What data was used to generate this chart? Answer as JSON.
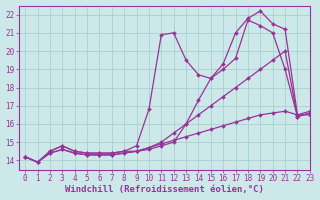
{
  "xlabel": "Windchill (Refroidissement éolien,°C)",
  "xlim": [
    -0.5,
    23
  ],
  "ylim": [
    13.5,
    22.5
  ],
  "xticks": [
    0,
    1,
    2,
    3,
    4,
    5,
    6,
    7,
    8,
    9,
    10,
    11,
    12,
    13,
    14,
    15,
    16,
    17,
    18,
    19,
    20,
    21,
    22,
    23
  ],
  "yticks": [
    14,
    15,
    16,
    17,
    18,
    19,
    20,
    21,
    22
  ],
  "background_color": "#cce8e8",
  "grid_color": "#a8d0d0",
  "line_color": "#993399",
  "series": [
    {
      "x": [
        0,
        1,
        2,
        3,
        4,
        5,
        6,
        7,
        8,
        9,
        10,
        11,
        12,
        13,
        14,
        15,
        16,
        17,
        18,
        19,
        20,
        21,
        22,
        23
      ],
      "y": [
        14.2,
        13.9,
        14.5,
        14.8,
        14.5,
        14.4,
        14.4,
        14.4,
        14.5,
        14.5,
        14.6,
        14.8,
        15.0,
        16.0,
        17.3,
        18.5,
        19.3,
        21.0,
        21.8,
        22.2,
        21.5,
        21.2,
        16.5,
        16.5
      ]
    },
    {
      "x": [
        0,
        1,
        2,
        3,
        4,
        5,
        6,
        7,
        8,
        9,
        10,
        11,
        12,
        13,
        14,
        15,
        16,
        17,
        18,
        19,
        20,
        21,
        22,
        23
      ],
      "y": [
        14.2,
        13.9,
        14.5,
        14.8,
        14.5,
        14.4,
        14.4,
        14.4,
        14.5,
        14.8,
        16.8,
        20.9,
        21.0,
        19.5,
        18.7,
        18.5,
        19.0,
        19.6,
        21.7,
        21.4,
        21.0,
        19.0,
        16.4,
        16.6
      ]
    },
    {
      "x": [
        0,
        1,
        2,
        3,
        4,
        5,
        6,
        7,
        8,
        9,
        10,
        11,
        12,
        13,
        14,
        15,
        16,
        17,
        18,
        19,
        20,
        21,
        22,
        23
      ],
      "y": [
        14.2,
        13.9,
        14.4,
        14.6,
        14.4,
        14.3,
        14.3,
        14.3,
        14.4,
        14.5,
        14.7,
        15.0,
        15.5,
        16.0,
        16.5,
        17.0,
        17.5,
        18.0,
        18.5,
        19.0,
        19.5,
        20.0,
        16.4,
        16.6
      ]
    },
    {
      "x": [
        0,
        1,
        2,
        3,
        4,
        5,
        6,
        7,
        8,
        9,
        10,
        11,
        12,
        13,
        14,
        15,
        16,
        17,
        18,
        19,
        20,
        21,
        22,
        23
      ],
      "y": [
        14.2,
        13.9,
        14.4,
        14.6,
        14.4,
        14.3,
        14.3,
        14.3,
        14.4,
        14.5,
        14.7,
        14.9,
        15.1,
        15.3,
        15.5,
        15.7,
        15.9,
        16.1,
        16.3,
        16.5,
        16.6,
        16.7,
        16.5,
        16.7
      ]
    }
  ],
  "marker": "D",
  "markersize": 2.0,
  "linewidth": 0.9,
  "tick_fontsize": 5.5,
  "label_fontsize": 6.5
}
